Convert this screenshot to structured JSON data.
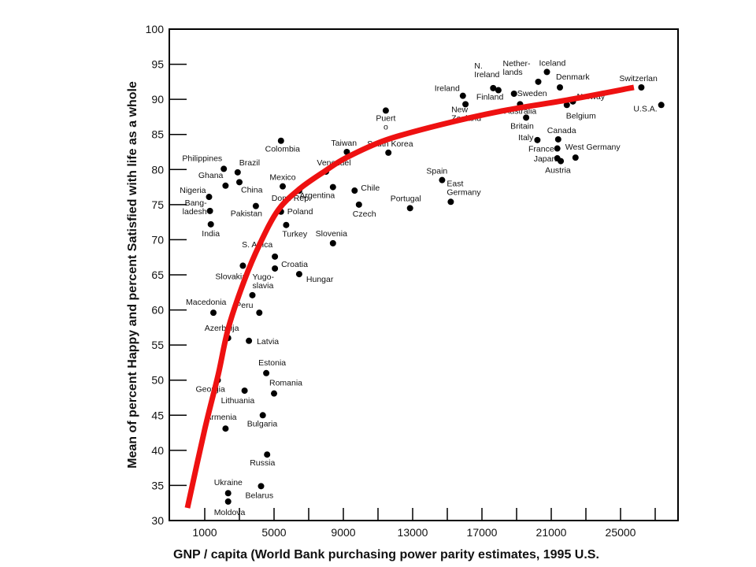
{
  "chart_data": {
    "type": "scatter",
    "title": "",
    "xlabel": "GNP  / capita (World Bank purchasing power parity estimates, 1995 U.S.",
    "ylabel": "Mean of percent Happy and percent Satisfied with life as a whole",
    "xlim": [
      0,
      27500
    ],
    "ylim": [
      30,
      100
    ],
    "xticks": [
      1000,
      5000,
      9000,
      13000,
      17000,
      21000,
      25000
    ],
    "xtick_labels": [
      "1000",
      "5000",
      "9000",
      "13000",
      "17000",
      "21000",
      "25000"
    ],
    "yticks": [
      30,
      35,
      40,
      45,
      50,
      55,
      60,
      65,
      70,
      75,
      80,
      85,
      90,
      95,
      100
    ],
    "ytick_labels": [
      "30",
      "35",
      "40",
      "45",
      "50",
      "55",
      "60",
      "65",
      "70",
      "75",
      "80",
      "85",
      "90",
      "95",
      "100"
    ],
    "grid": false,
    "legend": "none",
    "points": [
      {
        "name": "Philippines",
        "label": [
          "Philippines"
        ],
        "x": 2100,
        "y": 80.1
      },
      {
        "name": "Brazil",
        "label": [
          "Brazil"
        ],
        "x": 2900,
        "y": 79.6
      },
      {
        "name": "Ghana",
        "label": [
          "Ghana"
        ],
        "x": 2200,
        "y": 77.7
      },
      {
        "name": "China",
        "label": [
          "China"
        ],
        "x": 3000,
        "y": 78.2
      },
      {
        "name": "Nigeria",
        "label": [
          "Nigeria"
        ],
        "x": 1250,
        "y": 76.1
      },
      {
        "name": "Bangladesh",
        "label": [
          "Bang-",
          "ladesh"
        ],
        "x": 1300,
        "y": 74.1
      },
      {
        "name": "India",
        "label": [
          "India"
        ],
        "x": 1350,
        "y": 72.2
      },
      {
        "name": "Pakistan",
        "label": [
          "Pakistan"
        ],
        "x": 3950,
        "y": 74.8
      },
      {
        "name": "Colombia",
        "label": [
          "Colombia"
        ],
        "x": 5400,
        "y": 84.1
      },
      {
        "name": "Mexico",
        "label": [
          "Mexico"
        ],
        "x": 5500,
        "y": 77.6
      },
      {
        "name": "Dom. Rep.",
        "label": [
          "Dom. Rep."
        ],
        "x": 6450,
        "y": 77.0
      },
      {
        "name": "Poland",
        "label": [
          "Poland"
        ],
        "x": 5400,
        "y": 74.0
      },
      {
        "name": "Turkey",
        "label": [
          "Turkey"
        ],
        "x": 5700,
        "y": 72.1
      },
      {
        "name": "Venezuela",
        "label": [
          "Venezuel"
        ],
        "x": 8000,
        "y": 79.7
      },
      {
        "name": "Argentina",
        "label": [
          "Argentina"
        ],
        "x": 8400,
        "y": 77.5
      },
      {
        "name": "Taiwan",
        "label": [
          "Taiwan"
        ],
        "x": 9200,
        "y": 82.5
      },
      {
        "name": "South Korea",
        "label": [
          "South Korea"
        ],
        "x": 11600,
        "y": 82.4
      },
      {
        "name": "Puerto Rico",
        "label": [
          "Puert",
          "o"
        ],
        "x": 11450,
        "y": 88.4
      },
      {
        "name": "Chile",
        "label": [
          "Chile"
        ],
        "x": 9650,
        "y": 77.0
      },
      {
        "name": "Czech",
        "label": [
          "Czech"
        ],
        "x": 9900,
        "y": 75.0
      },
      {
        "name": "Slovenia",
        "label": [
          "Slovenia"
        ],
        "x": 8400,
        "y": 69.5
      },
      {
        "name": "Portugal",
        "label": [
          "Portugal"
        ],
        "x": 12850,
        "y": 74.5
      },
      {
        "name": "Spain",
        "label": [
          "Spain"
        ],
        "x": 14700,
        "y": 78.5
      },
      {
        "name": "East Germany",
        "label": [
          "East",
          "Germany"
        ],
        "x": 15200,
        "y": 75.4
      },
      {
        "name": "Ireland",
        "label": [
          "Ireland"
        ],
        "x": 15900,
        "y": 90.5
      },
      {
        "name": "New Zealand",
        "label": [
          "New",
          "Zealand"
        ],
        "x": 16050,
        "y": 89.3
      },
      {
        "name": "N. Ireland",
        "label": [
          "N.",
          "Ireland"
        ],
        "x": 17650,
        "y": 91.6
      },
      {
        "name": "Finland",
        "label": [
          "Finland"
        ],
        "x": 17950,
        "y": 91.3
      },
      {
        "name": "Netherlands",
        "label": [
          "Nether-",
          "lands"
        ],
        "x": 20250,
        "y": 92.5
      },
      {
        "name": "Iceland",
        "label": [
          "Iceland"
        ],
        "x": 20750,
        "y": 93.9
      },
      {
        "name": "Sweden",
        "label": [
          "Sweden"
        ],
        "x": 18850,
        "y": 90.8
      },
      {
        "name": "Denmark",
        "label": [
          "Denmark"
        ],
        "x": 21500,
        "y": 91.7
      },
      {
        "name": "Australia",
        "label": [
          "Australia"
        ],
        "x": 19200,
        "y": 89.3
      },
      {
        "name": "Norway",
        "label": [
          "Norway"
        ],
        "x": 22250,
        "y": 89.7
      },
      {
        "name": "Belgium",
        "label": [
          "Belgium"
        ],
        "x": 21900,
        "y": 89.2
      },
      {
        "name": "Britain",
        "label": [
          "Britain"
        ],
        "x": 19550,
        "y": 87.4
      },
      {
        "name": "Italy",
        "label": [
          "Italy"
        ],
        "x": 20200,
        "y": 84.2
      },
      {
        "name": "Canada",
        "label": [
          "Canada"
        ],
        "x": 21400,
        "y": 84.3
      },
      {
        "name": "France",
        "label": [
          "France"
        ],
        "x": 21350,
        "y": 83.0
      },
      {
        "name": "West Germany",
        "label": [
          "West Germany"
        ],
        "x": 22400,
        "y": 81.7
      },
      {
        "name": "Japan",
        "label": [
          "Japan"
        ],
        "x": 21350,
        "y": 81.6
      },
      {
        "name": "Austria",
        "label": [
          "Austria"
        ],
        "x": 21550,
        "y": 81.2
      },
      {
        "name": "Switzerland",
        "label": [
          "Switzerlan"
        ],
        "x": 26200,
        "y": 91.7
      },
      {
        "name": "U.S.A.",
        "label": [
          "U.S.A."
        ],
        "x": 27350,
        "y": 89.2
      },
      {
        "name": "S. Africa",
        "label": [
          "S. Africa"
        ],
        "x": 5050,
        "y": 67.6
      },
      {
        "name": "Croatia",
        "label": [
          "Croatia"
        ],
        "x": 5050,
        "y": 65.9
      },
      {
        "name": "Slovakia",
        "label": [
          "Slovakia"
        ],
        "x": 3200,
        "y": 66.3
      },
      {
        "name": "Hungary",
        "label": [
          "Hungar"
        ],
        "x": 6450,
        "y": 65.1
      },
      {
        "name": "Yugoslavia",
        "label": [
          "Yugo-",
          "slavia"
        ],
        "x": 3750,
        "y": 62.1
      },
      {
        "name": "Macedonia",
        "label": [
          "Macedonia"
        ],
        "x": 1500,
        "y": 59.6
      },
      {
        "name": "Peru",
        "label": [
          "Peru"
        ],
        "x": 4150,
        "y": 59.6
      },
      {
        "name": "Azerbaijan",
        "label": [
          "Azerbaija"
        ],
        "x": 2350,
        "y": 56.0
      },
      {
        "name": "Latvia",
        "label": [
          "Latvia"
        ],
        "x": 3550,
        "y": 55.6
      },
      {
        "name": "Georgia",
        "label": [
          "Georgia"
        ],
        "x": 1750,
        "y": 50.0
      },
      {
        "name": "Estonia",
        "label": [
          "Estonia"
        ],
        "x": 4550,
        "y": 51.0
      },
      {
        "name": "Lithuania",
        "label": [
          "Lithuania"
        ],
        "x": 3300,
        "y": 48.5
      },
      {
        "name": "Romania",
        "label": [
          "Romania"
        ],
        "x": 5000,
        "y": 48.1
      },
      {
        "name": "Armenia",
        "label": [
          "Armenia"
        ],
        "x": 2200,
        "y": 43.1
      },
      {
        "name": "Bulgaria",
        "label": [
          "Bulgaria"
        ],
        "x": 4350,
        "y": 45.0
      },
      {
        "name": "Russia",
        "label": [
          "Russia"
        ],
        "x": 4600,
        "y": 39.4
      },
      {
        "name": "Belarus",
        "label": [
          "Belarus"
        ],
        "x": 4250,
        "y": 34.9
      },
      {
        "name": "Ukraine",
        "label": [
          "Ukraine"
        ],
        "x": 2350,
        "y": 33.9
      },
      {
        "name": "Moldova",
        "label": [
          "Moldova"
        ],
        "x": 2350,
        "y": 32.7
      }
    ],
    "trend_curve": {
      "color": "#ee1111",
      "points": [
        [
          0,
          31.8
        ],
        [
          1000,
          43.0
        ],
        [
          1770,
          50.7
        ],
        [
          2360,
          57.4
        ],
        [
          3270,
          64.1
        ],
        [
          4180,
          69.4
        ],
        [
          5230,
          74.2
        ],
        [
          6450,
          77.2
        ],
        [
          7950,
          79.8
        ],
        [
          9180,
          81.7
        ],
        [
          11450,
          84.2
        ],
        [
          14640,
          86.4
        ],
        [
          18270,
          88.4
        ],
        [
          21910,
          89.9
        ],
        [
          25770,
          91.7
        ]
      ]
    }
  }
}
